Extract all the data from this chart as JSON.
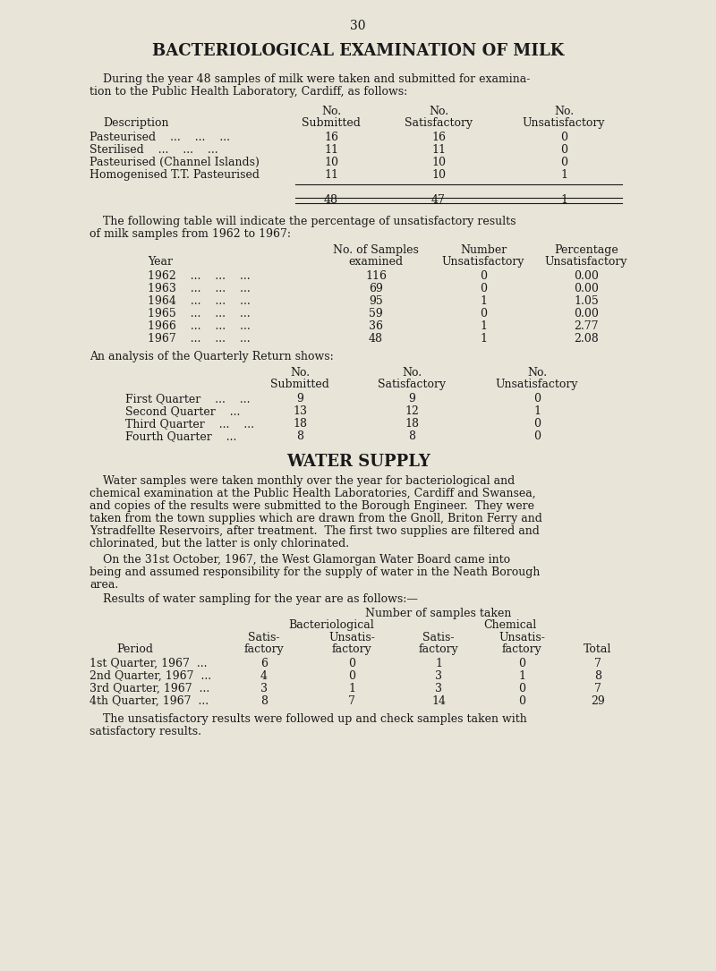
{
  "bg_color": "#e8e4d8",
  "page_number": "30",
  "title1": "BACTERIOLOGICAL EXAMINATION OF MILK",
  "para1_line1": "During the year 48 samples of milk were taken and submitted for examina-",
  "para1_line2": "tion to the Public Health Laboratory, Cardiff, as follows:",
  "title2": "WATER SUPPLY",
  "para4_lines": [
    "Water samples were taken monthly over the year for bacteriological and",
    "chemical examination at the Public Health Laboratories, Cardiff and Swansea,",
    "and copies of the results were submitted to the Borough Engineer.  They were",
    "taken from the town supplies which are drawn from the Gnoll, Briton Ferry and",
    "Ystradfellte Reservoirs, after treatment.  The first two supplies are filtered and",
    "chlorinated, but the latter is only chlorinated."
  ],
  "para5_lines": [
    "On the 31st October, 1967, the West Glamorgan Water Board came into",
    "being and assumed responsibility for the supply of water in the Neath Borough",
    "area."
  ],
  "para6": "Results of water sampling for the year are as follows:—",
  "para7_line1": "The unsatisfactory results were followed up and check samples taken with",
  "para7_line2": "satisfactory results."
}
